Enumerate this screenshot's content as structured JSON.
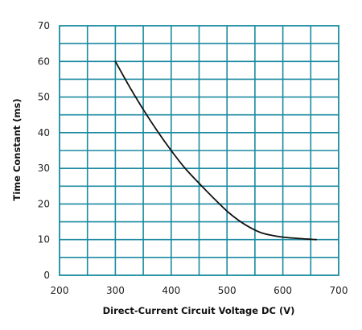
{
  "chart_data": {
    "type": "line",
    "title": "",
    "xlabel": "Direct-Current  Circuit Voltage DC (V)",
    "ylabel": "Time Constant (ms)",
    "xlim": [
      200,
      700
    ],
    "ylim": [
      0,
      70
    ],
    "x_ticks": [
      200,
      300,
      400,
      500,
      600,
      700
    ],
    "y_ticks": [
      0,
      10,
      20,
      30,
      40,
      50,
      60,
      70
    ],
    "x_tick_labels": [
      "200",
      "300",
      "400",
      "500",
      "600",
      "700"
    ],
    "y_tick_labels": [
      "0",
      "10",
      "20",
      "30",
      "40",
      "50",
      "60",
      "70"
    ],
    "grid": true,
    "grid_x_step": 50,
    "grid_y_step": 5,
    "legend": "none",
    "colors": {
      "grid": "#1a8aa0",
      "frame": "#1a8aa0",
      "line": "#111111",
      "text": "#222222"
    },
    "series": [
      {
        "x": [
          300,
          325,
          350,
          375,
          400,
          425,
          450,
          475,
          500,
          520,
          540,
          560,
          580,
          600,
          630,
          660
        ],
        "y": [
          60,
          53,
          46.5,
          40.5,
          35,
          30,
          25.8,
          21.8,
          18,
          15.5,
          13.5,
          12,
          11.2,
          10.7,
          10.3,
          10
        ]
      }
    ]
  }
}
